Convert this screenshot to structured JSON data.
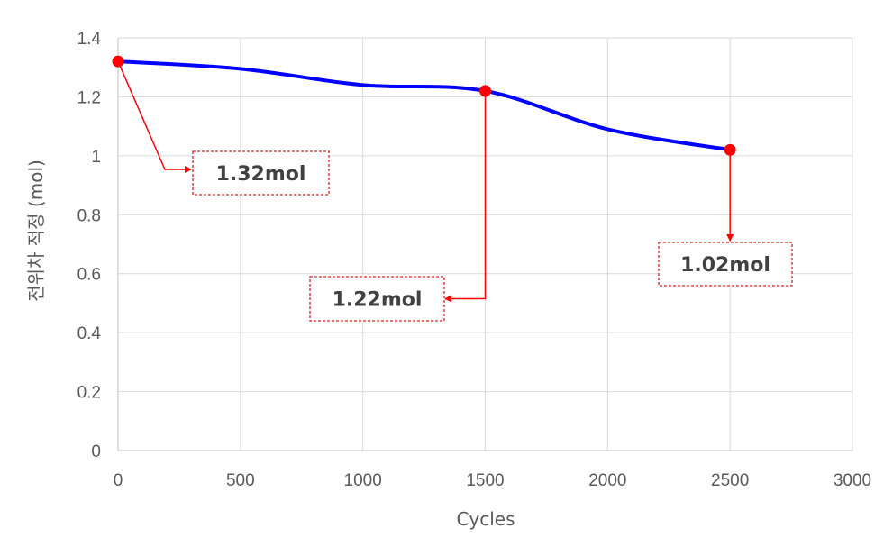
{
  "chart_data": {
    "type": "line",
    "xlabel": "Cycles",
    "ylabel": "전위차 적정 (mol)",
    "xlim": [
      0,
      3000
    ],
    "ylim": [
      0,
      1.4
    ],
    "x_ticks": [
      "0",
      "500",
      "1000",
      "1500",
      "2000",
      "2500",
      "3000"
    ],
    "y_ticks": [
      "0",
      "0.2",
      "0.4",
      "0.6",
      "0.8",
      "1",
      "1.2",
      "1.4"
    ],
    "grid": true,
    "series": [
      {
        "color": "#0000ff",
        "x": [
          0,
          500,
          1000,
          1500,
          2000,
          2500
        ],
        "y": [
          1.32,
          1.295,
          1.24,
          1.22,
          1.09,
          1.02
        ]
      }
    ],
    "highlighted_points": [
      {
        "x": 0,
        "y": 1.32,
        "color": "#ff0000"
      },
      {
        "x": 1500,
        "y": 1.22,
        "color": "#ff0000"
      },
      {
        "x": 2500,
        "y": 1.02,
        "color": "#ff0000"
      }
    ],
    "annotations": [
      {
        "text": "1.32mol",
        "x": 0,
        "y": 1.32
      },
      {
        "text": "1.22mol",
        "x": 1500,
        "y": 1.22
      },
      {
        "text": "1.02mol",
        "x": 2500,
        "y": 1.02
      }
    ]
  }
}
